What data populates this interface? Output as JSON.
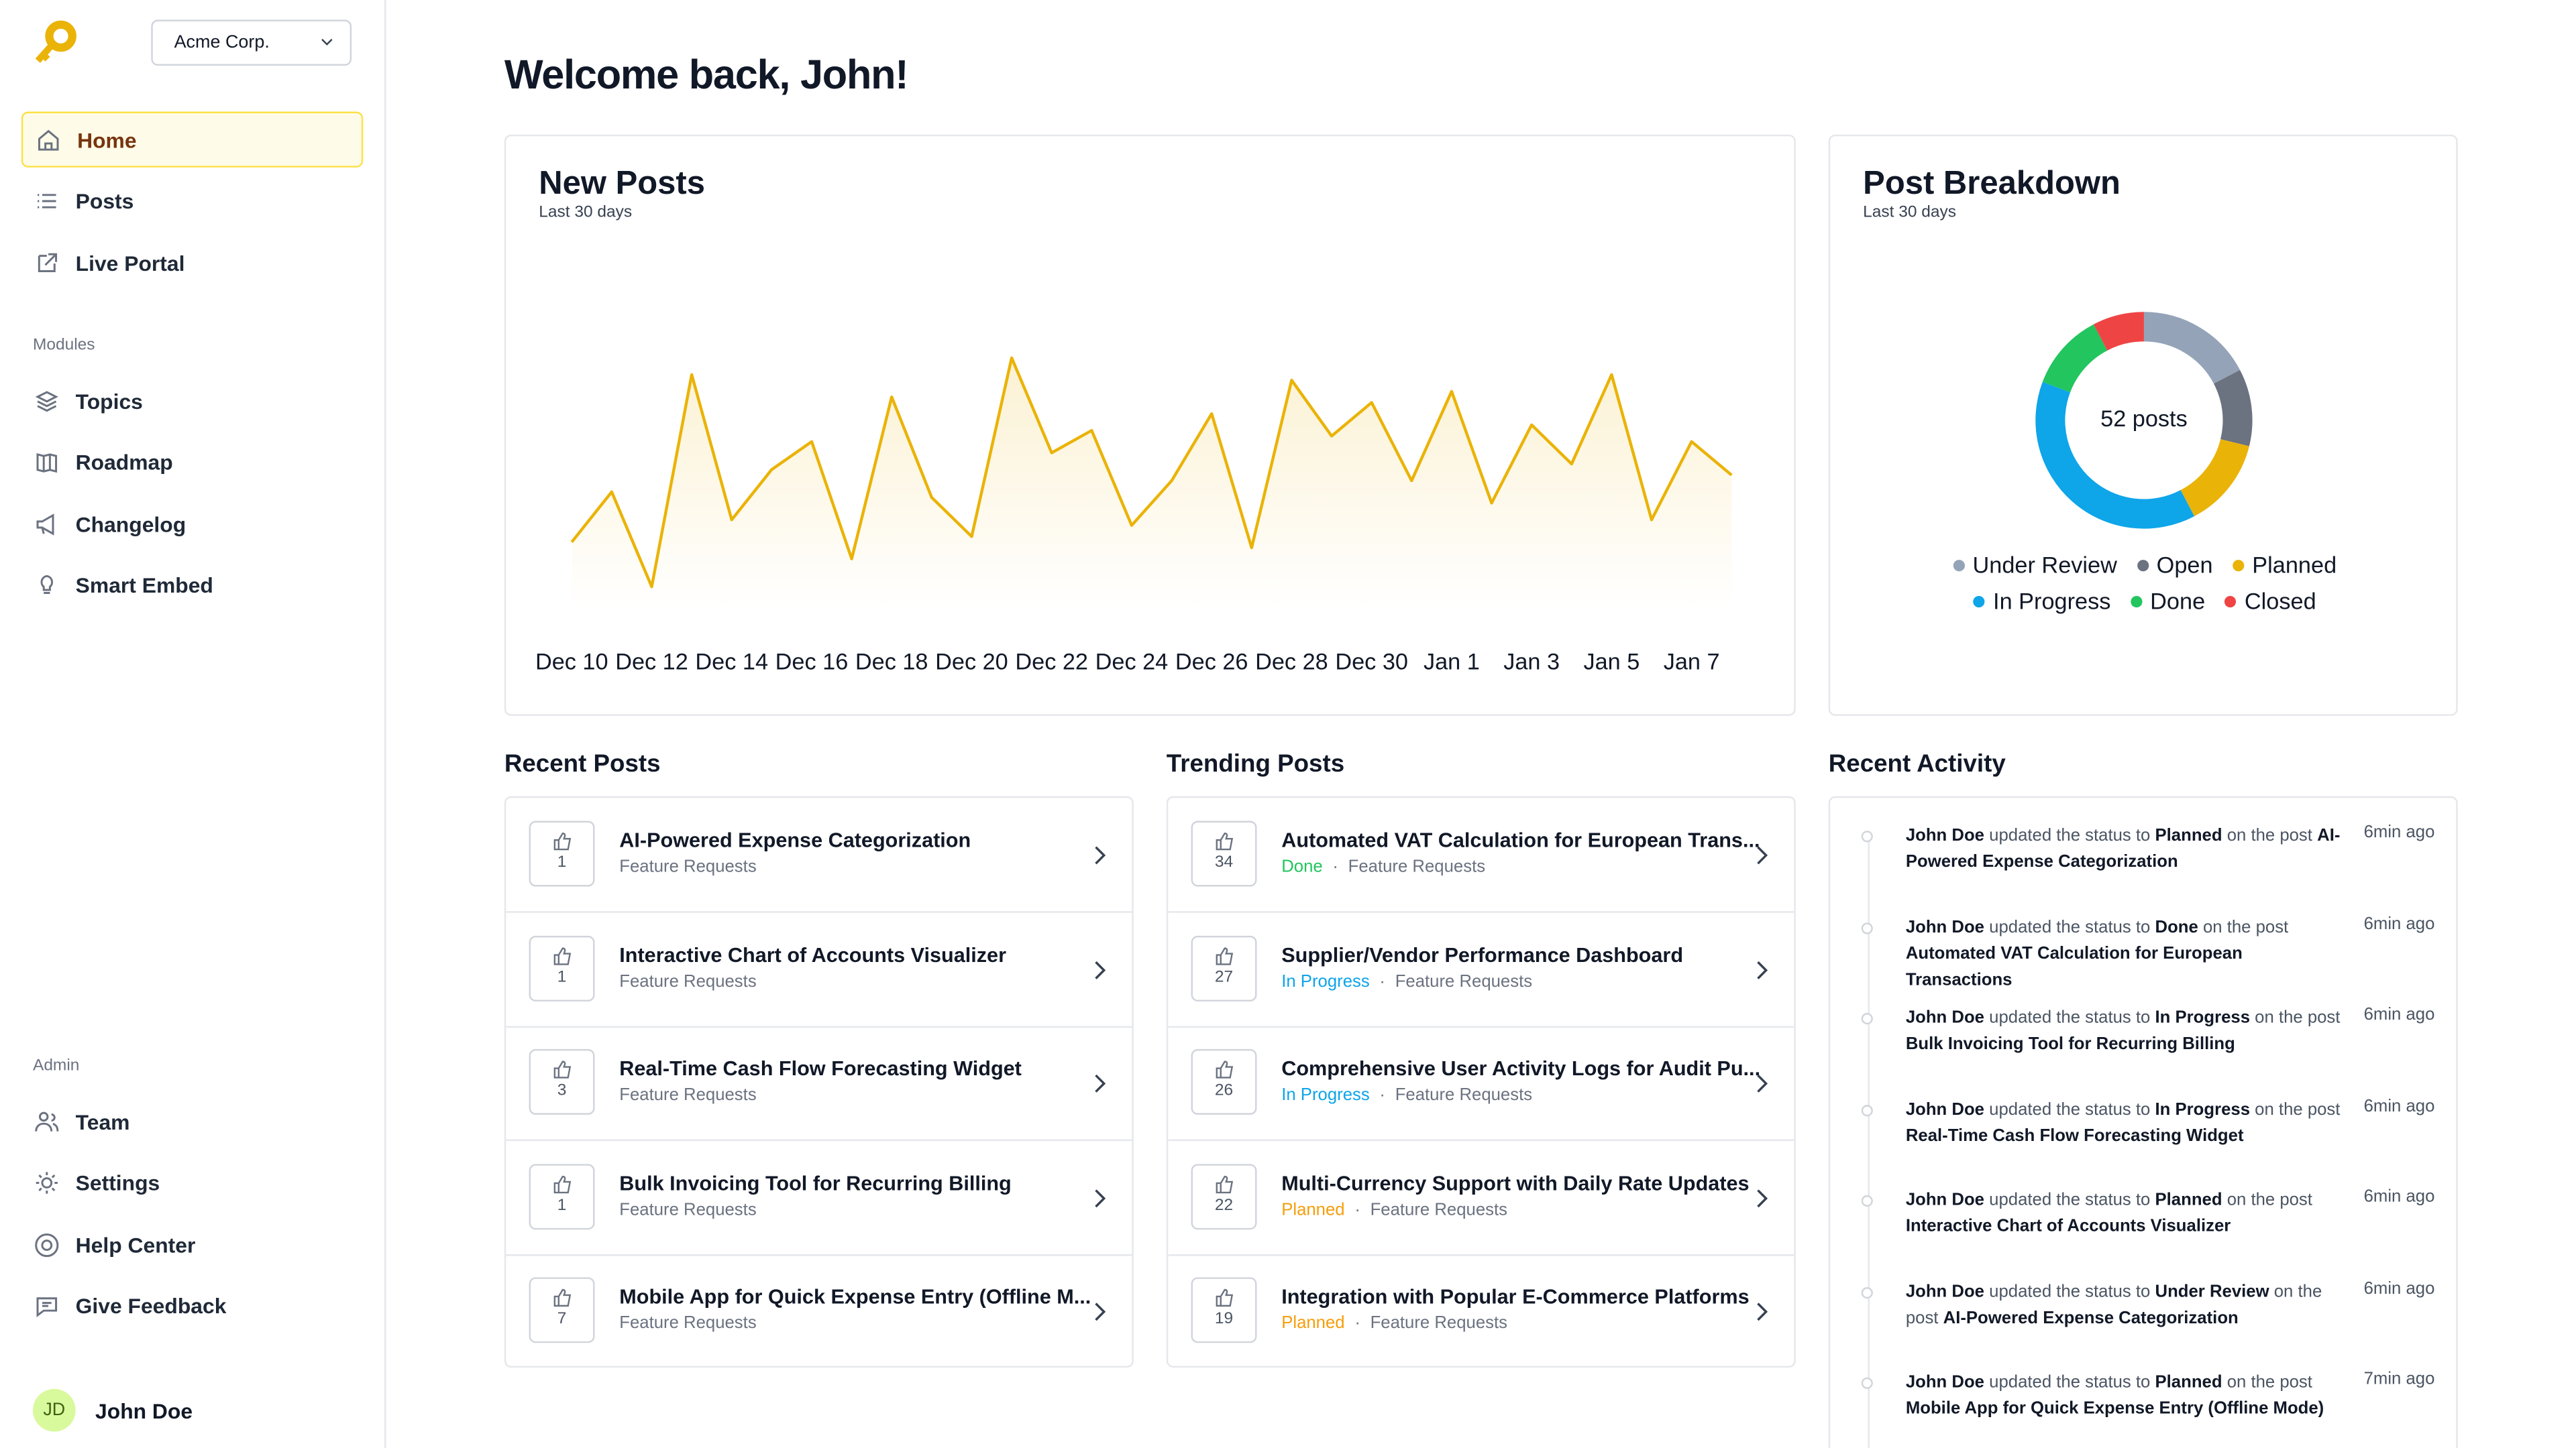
{
  "sidebar": {
    "org": "Acme Corp.",
    "nav": [
      "Home",
      "Posts",
      "Live Portal"
    ],
    "modules_heading": "Modules",
    "modules": [
      "Topics",
      "Roadmap",
      "Changelog",
      "Smart Embed"
    ],
    "admin_heading": "Admin",
    "admin": [
      "Team",
      "Settings",
      "Help Center",
      "Give Feedback"
    ],
    "user": {
      "initials": "JD",
      "name": "John Doe"
    }
  },
  "header": {
    "title": "Welcome back, John!"
  },
  "chart_data": [
    {
      "type": "line",
      "title": "New Posts",
      "subtitle": "Last 30 days",
      "categories": [
        "Dec 10",
        null,
        "Dec 12",
        null,
        "Dec 14",
        null,
        "Dec 16",
        null,
        "Dec 18",
        null,
        "Dec 20",
        null,
        "Dec 22",
        null,
        "Dec 24",
        null,
        "Dec 26",
        null,
        "Dec 28",
        null,
        "Dec 30",
        null,
        "Jan 1",
        null,
        "Jan 3",
        null,
        "Jan 5",
        null,
        "Jan 7",
        null
      ],
      "values": [
        1.2,
        2.1,
        0.4,
        4.2,
        1.6,
        2.5,
        3.0,
        0.9,
        3.8,
        2.0,
        1.3,
        4.5,
        2.8,
        3.2,
        1.5,
        2.3,
        3.5,
        1.1,
        4.1,
        3.1,
        3.7,
        2.3,
        3.9,
        1.9,
        3.3,
        2.6,
        4.2,
        1.6,
        3.0,
        2.4
      ],
      "color": "#eab308",
      "ylim": [
        0,
        5
      ]
    },
    {
      "type": "donut",
      "title": "Post Breakdown",
      "subtitle": "Last 30 days",
      "center_label": "52 posts",
      "categories": [
        "Under Review",
        "Open",
        "Planned",
        "In Progress",
        "Done",
        "Closed"
      ],
      "values": [
        9,
        6,
        7,
        20,
        6,
        4
      ],
      "colors": [
        "#94a3b8",
        "#6b7280",
        "#eab308",
        "#0ea5e9",
        "#22c55e",
        "#ef4444"
      ]
    }
  ],
  "recent_posts": {
    "title": "Recent Posts",
    "items": [
      {
        "votes": 1,
        "title": "AI-Powered Expense Categorization",
        "category": "Feature Requests"
      },
      {
        "votes": 1,
        "title": "Interactive Chart of Accounts Visualizer",
        "category": "Feature Requests"
      },
      {
        "votes": 3,
        "title": "Real-Time Cash Flow Forecasting Widget",
        "category": "Feature Requests"
      },
      {
        "votes": 1,
        "title": "Bulk Invoicing Tool for Recurring Billing",
        "category": "Feature Requests"
      },
      {
        "votes": 7,
        "title": "Mobile App for Quick Expense Entry (Offline M...",
        "category": "Feature Requests"
      }
    ]
  },
  "trending_posts": {
    "title": "Trending Posts",
    "items": [
      {
        "votes": 34,
        "title": "Automated VAT Calculation for European Trans...",
        "status": "Done",
        "status_color": "#22c55e",
        "category": "Feature Requests"
      },
      {
        "votes": 27,
        "title": "Supplier/Vendor Performance Dashboard",
        "status": "In Progress",
        "status_color": "#0ea5e9",
        "category": "Feature Requests"
      },
      {
        "votes": 26,
        "title": "Comprehensive User Activity Logs for Audit Pu...",
        "status": "In Progress",
        "status_color": "#0ea5e9",
        "category": "Feature Requests"
      },
      {
        "votes": 22,
        "title": "Multi-Currency Support with Daily Rate Updates",
        "status": "Planned",
        "status_color": "#f59e0b",
        "category": "Feature Requests"
      },
      {
        "votes": 19,
        "title": "Integration with Popular E-Commerce Platforms",
        "status": "Planned",
        "status_color": "#f59e0b",
        "category": "Feature Requests"
      }
    ]
  },
  "recent_activity": {
    "title": "Recent Activity",
    "items": [
      {
        "user": "John Doe",
        "action": "updated the status to",
        "status": "Planned",
        "link": "on the post",
        "post": "AI-Powered Expense Categorization",
        "time": "6min ago"
      },
      {
        "user": "John Doe",
        "action": "updated the status to",
        "status": "Done",
        "link": "on the post",
        "post": "Automated VAT Calculation for European Transactions",
        "time": "6min ago"
      },
      {
        "user": "John Doe",
        "action": "updated the status to",
        "status": "In Progress",
        "link": "on the post",
        "post": "Bulk Invoicing Tool for Recurring Billing",
        "time": "6min ago"
      },
      {
        "user": "John Doe",
        "action": "updated the status to",
        "status": "In Progress",
        "link": "on the post",
        "post": "Real-Time Cash Flow Forecasting Widget",
        "time": "6min ago"
      },
      {
        "user": "John Doe",
        "action": "updated the status to",
        "status": "Planned",
        "link": "on the post",
        "post": "Interactive Chart of Accounts Visualizer",
        "time": "6min ago"
      },
      {
        "user": "John Doe",
        "action": "updated the status to",
        "status": "Under Review",
        "link": "on the post",
        "post": "AI-Powered Expense Categorization",
        "time": "6min ago"
      },
      {
        "user": "John Doe",
        "action": "updated the status to",
        "status": "Planned",
        "link": "on the post",
        "post": "Mobile App for Quick Expense Entry (Offline Mode)",
        "time": "7min ago"
      }
    ]
  }
}
